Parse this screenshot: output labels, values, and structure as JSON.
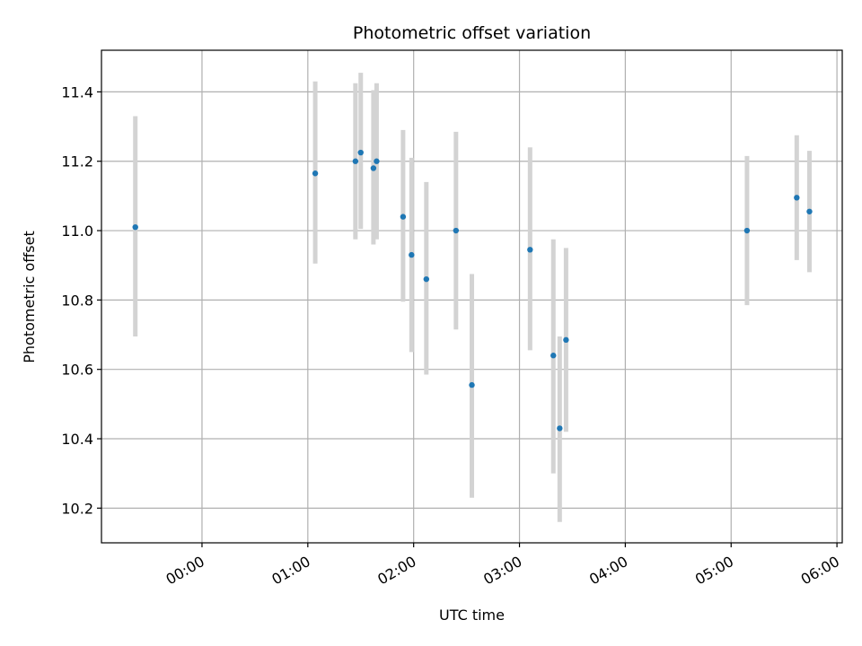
{
  "chart_data": {
    "type": "scatter",
    "title": "Photometric offset variation",
    "xlabel": "UTC time",
    "ylabel": "Photometric offset",
    "x_unit": "UTC hours",
    "xlim": [
      -0.95,
      6.05
    ],
    "ylim": [
      10.1,
      11.52
    ],
    "grid": true,
    "legend": "none",
    "x_ticks": [
      {
        "value": 0,
        "label": "00:00"
      },
      {
        "value": 1,
        "label": "01:00"
      },
      {
        "value": 2,
        "label": "02:00"
      },
      {
        "value": 3,
        "label": "03:00"
      },
      {
        "value": 4,
        "label": "04:00"
      },
      {
        "value": 5,
        "label": "05:00"
      },
      {
        "value": 6,
        "label": "06:00"
      }
    ],
    "y_ticks": [
      {
        "value": 10.2,
        "label": "10.2"
      },
      {
        "value": 10.4,
        "label": "10.4"
      },
      {
        "value": 10.6,
        "label": "10.6"
      },
      {
        "value": 10.8,
        "label": "10.8"
      },
      {
        "value": 11.0,
        "label": "11.0"
      },
      {
        "value": 11.2,
        "label": "11.2"
      },
      {
        "value": 11.4,
        "label": "11.4"
      }
    ],
    "colors": {
      "point": "#1f77b4",
      "errorbar": "#d3d3d3",
      "grid": "#b0b0b0"
    },
    "points": [
      {
        "x": -0.63,
        "y": 11.01,
        "err_low": 10.695,
        "err_high": 11.33
      },
      {
        "x": 1.07,
        "y": 11.165,
        "err_low": 10.905,
        "err_high": 11.43
      },
      {
        "x": 1.45,
        "y": 11.2,
        "err_low": 10.975,
        "err_high": 11.425
      },
      {
        "x": 1.5,
        "y": 11.225,
        "err_low": 11.005,
        "err_high": 11.455
      },
      {
        "x": 1.62,
        "y": 11.18,
        "err_low": 10.96,
        "err_high": 11.405
      },
      {
        "x": 1.65,
        "y": 11.2,
        "err_low": 10.975,
        "err_high": 11.425
      },
      {
        "x": 1.9,
        "y": 11.04,
        "err_low": 10.795,
        "err_high": 11.29
      },
      {
        "x": 1.98,
        "y": 10.93,
        "err_low": 10.65,
        "err_high": 11.21
      },
      {
        "x": 2.12,
        "y": 10.86,
        "err_low": 10.585,
        "err_high": 11.14
      },
      {
        "x": 2.4,
        "y": 11.0,
        "err_low": 10.715,
        "err_high": 11.285
      },
      {
        "x": 2.55,
        "y": 10.555,
        "err_low": 10.23,
        "err_high": 10.875
      },
      {
        "x": 3.1,
        "y": 10.945,
        "err_low": 10.655,
        "err_high": 11.24
      },
      {
        "x": 3.32,
        "y": 10.64,
        "err_low": 10.3,
        "err_high": 10.975
      },
      {
        "x": 3.38,
        "y": 10.43,
        "err_low": 10.16,
        "err_high": 10.695
      },
      {
        "x": 3.44,
        "y": 10.685,
        "err_low": 10.42,
        "err_high": 10.95
      },
      {
        "x": 5.15,
        "y": 11.0,
        "err_low": 10.785,
        "err_high": 11.215
      },
      {
        "x": 5.62,
        "y": 11.095,
        "err_low": 10.915,
        "err_high": 11.275
      },
      {
        "x": 5.74,
        "y": 11.055,
        "err_low": 10.88,
        "err_high": 11.23
      }
    ]
  }
}
